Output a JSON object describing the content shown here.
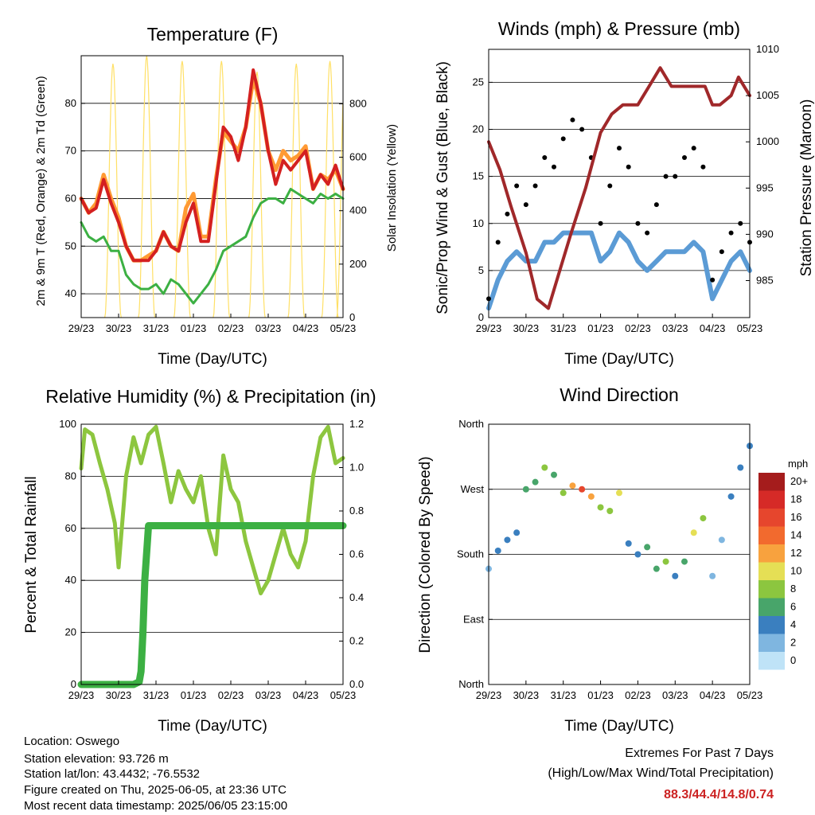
{
  "x_tick_labels": [
    "29/23",
    "30/23",
    "31/23",
    "01/23",
    "02/23",
    "03/23",
    "04/23",
    "05/23"
  ],
  "x_axis_label": "Time (Day/UTC)",
  "chart_data": [
    {
      "id": "temperature",
      "type": "line",
      "title": "Temperature (F)",
      "xlabel": "Time (Day/UTC)",
      "ylabel": "2m & 9m T (Red, Orange) & 2m Td (Green)",
      "ylabel_right": "Solar Insolation (Yellow)",
      "ylim": [
        35,
        90
      ],
      "yticks": [
        40,
        50,
        60,
        70,
        80
      ],
      "ylim_right": [
        0,
        980
      ],
      "yticks_right": [
        0,
        200,
        400,
        600,
        800
      ],
      "x_days": [
        0,
        7
      ],
      "grid": true,
      "series": [
        {
          "color": "#ff9a33",
          "x": [
            0,
            0.2,
            0.4,
            0.6,
            0.8,
            1.0,
            1.2,
            1.4,
            1.6,
            1.8,
            2.0,
            2.2,
            2.4,
            2.6,
            2.8,
            3.0,
            3.2,
            3.4,
            3.6,
            3.8,
            4.0,
            4.2,
            4.4,
            4.6,
            4.8,
            5.0,
            5.2,
            5.4,
            5.6,
            5.8,
            6.0,
            6.2,
            6.4,
            6.6,
            6.8,
            7.0
          ],
          "y": [
            60,
            57,
            59,
            65,
            60,
            56,
            50,
            47,
            47,
            48,
            49,
            53,
            50,
            49,
            58,
            61,
            52,
            52,
            64,
            74,
            72,
            70,
            75,
            85,
            80,
            70,
            66,
            70,
            68,
            69,
            71,
            62,
            65,
            64,
            66,
            62
          ]
        },
        {
          "color": "#d42020",
          "x": [
            0,
            0.2,
            0.4,
            0.6,
            0.8,
            1.0,
            1.2,
            1.4,
            1.6,
            1.8,
            2.0,
            2.2,
            2.4,
            2.6,
            2.8,
            3.0,
            3.2,
            3.4,
            3.6,
            3.8,
            4.0,
            4.2,
            4.4,
            4.6,
            4.8,
            5.0,
            5.2,
            5.4,
            5.6,
            5.8,
            6.0,
            6.2,
            6.4,
            6.6,
            6.8,
            7.0
          ],
          "y": [
            60,
            57,
            58,
            64,
            59,
            55,
            50,
            47,
            47,
            47,
            49,
            53,
            50,
            49,
            55,
            59,
            51,
            51,
            63,
            75,
            73,
            68,
            75,
            87,
            80,
            70,
            63,
            68,
            66,
            68,
            70,
            62,
            65,
            63,
            67,
            62
          ]
        },
        {
          "color": "#3cb043",
          "x": [
            0,
            0.2,
            0.4,
            0.6,
            0.8,
            1.0,
            1.2,
            1.4,
            1.6,
            1.8,
            2.0,
            2.2,
            2.4,
            2.6,
            2.8,
            3.0,
            3.2,
            3.4,
            3.6,
            3.8,
            4.0,
            4.2,
            4.4,
            4.6,
            4.8,
            5.0,
            5.2,
            5.4,
            5.6,
            5.8,
            6.0,
            6.2,
            6.4,
            6.6,
            6.8,
            7.0
          ],
          "y": [
            55,
            52,
            51,
            52,
            49,
            49,
            44,
            42,
            41,
            41,
            42,
            40,
            43,
            42,
            40,
            38,
            40,
            42,
            45,
            49,
            50,
            51,
            52,
            56,
            59,
            60,
            60,
            59,
            62,
            61,
            60,
            59,
            61,
            60,
            61,
            60
          ]
        },
        {
          "color": "#ffe066",
          "type": "solar",
          "peak_days": [
            0.85,
            1.75,
            2.7,
            3.75,
            4.7,
            5.75,
            6.65,
            7.05
          ],
          "peak_values": [
            950,
            980,
            960,
            960,
            920,
            950,
            960,
            940
          ]
        }
      ]
    },
    {
      "id": "winds",
      "type": "scatter",
      "title": "Winds (mph) & Pressure (mb)",
      "xlabel": "Time (Day/UTC)",
      "ylabel": "Sonic/Prop Wind & Gust (Blue, Black)",
      "ylabel_right": "Station Pressure (Maroon)",
      "ylim": [
        0,
        28.5
      ],
      "yticks": [
        0,
        5,
        10,
        15,
        20,
        25
      ],
      "ylim_right": [
        981,
        1010
      ],
      "yticks_right": [
        985,
        990,
        995,
        1000,
        1005,
        1010
      ],
      "x_days": [
        0,
        7
      ],
      "grid": true,
      "wind_x": [
        0,
        0.25,
        0.5,
        0.75,
        1.0,
        1.25,
        1.5,
        1.75,
        2.0,
        2.25,
        2.5,
        2.75,
        3.0,
        3.25,
        3.5,
        3.75,
        4.0,
        4.25,
        4.5,
        4.75,
        5.0,
        5.25,
        5.5,
        5.75,
        6.0,
        6.25,
        6.5,
        6.75,
        7.0
      ],
      "wind_blue": [
        1,
        4,
        6,
        7,
        6,
        6,
        8,
        8,
        9,
        9,
        9,
        9,
        6,
        7,
        9,
        8,
        6,
        5,
        6,
        7,
        7,
        7,
        8,
        7,
        2,
        4,
        6,
        7,
        5
      ],
      "gust_black": [
        2,
        8,
        11,
        14,
        12,
        14,
        17,
        16,
        19,
        21,
        20,
        17,
        10,
        14,
        18,
        16,
        10,
        9,
        12,
        15,
        15,
        17,
        18,
        16,
        4,
        7,
        9,
        10,
        8
      ],
      "pressure_x": [
        0,
        0.3,
        0.6,
        1.0,
        1.3,
        1.6,
        1.9,
        2.2,
        2.6,
        3.0,
        3.3,
        3.6,
        4.0,
        4.3,
        4.6,
        4.9,
        5.2,
        5.5,
        5.8,
        6.0,
        6.2,
        6.5,
        6.7,
        7.0
      ],
      "pressure": [
        1000,
        997,
        993,
        988,
        983,
        982,
        986,
        990,
        995,
        1001,
        1003,
        1004,
        1004,
        1006,
        1008,
        1006,
        1006,
        1006,
        1006,
        1004,
        1004,
        1005,
        1007,
        1005
      ]
    },
    {
      "id": "humidity",
      "type": "line",
      "title": "Relative Humidity (%) & Precipitation (in)",
      "xlabel": "Time (Day/UTC)",
      "ylabel": "Percent & Total Rainfall",
      "ylim": [
        0,
        100
      ],
      "yticks": [
        0,
        20,
        40,
        60,
        80,
        100
      ],
      "ylim_right": [
        0,
        1.2
      ],
      "yticks_right": [
        "0.0",
        "0.2",
        "0.4",
        "0.6",
        "0.8",
        "1.0",
        "1.2"
      ],
      "x_days": [
        0,
        7
      ],
      "grid": true,
      "series": [
        {
          "color": "#8dc63f",
          "x": [
            0,
            0.1,
            0.3,
            0.5,
            0.7,
            0.9,
            1.0,
            1.2,
            1.4,
            1.6,
            1.8,
            2.0,
            2.2,
            2.4,
            2.6,
            2.8,
            3.0,
            3.2,
            3.4,
            3.6,
            3.8,
            4.0,
            4.2,
            4.4,
            4.6,
            4.8,
            5.0,
            5.2,
            5.4,
            5.6,
            5.8,
            6.0,
            6.2,
            6.4,
            6.6,
            6.8,
            7.0
          ],
          "y": [
            83,
            98,
            96,
            85,
            75,
            62,
            45,
            80,
            95,
            85,
            96,
            99,
            85,
            70,
            82,
            75,
            70,
            80,
            60,
            50,
            88,
            75,
            70,
            55,
            45,
            35,
            40,
            50,
            60,
            50,
            45,
            55,
            80,
            95,
            99,
            85,
            87
          ]
        },
        {
          "color": "#3cb043",
          "x": [
            0,
            0.5,
            1.0,
            1.4,
            1.55,
            1.6,
            1.65,
            1.7,
            1.8,
            2.0,
            3.0,
            4.0,
            5.0,
            6.0,
            7.0
          ],
          "y": [
            0,
            0,
            0,
            0,
            1,
            5,
            20,
            40,
            61,
            61,
            61,
            61,
            61,
            61,
            61
          ]
        }
      ]
    },
    {
      "id": "wind_direction",
      "type": "scatter",
      "title": "Wind Direction",
      "xlabel": "Time (Day/UTC)",
      "ylabel": "Direction (Colored By Speed)",
      "ytick_labels": [
        "North",
        "East",
        "South",
        "West",
        "North"
      ],
      "ylim": [
        0,
        360
      ],
      "x_days": [
        0,
        7
      ],
      "grid": true,
      "direction_x": [
        0,
        0.25,
        0.5,
        0.75,
        1.0,
        1.25,
        1.5,
        1.75,
        2.0,
        2.25,
        2.5,
        2.75,
        3.0,
        3.25,
        3.5,
        3.75,
        4.0,
        4.25,
        4.5,
        4.75,
        5.0,
        5.25,
        5.5,
        5.75,
        6.0,
        6.25,
        6.5,
        6.75,
        7.0
      ],
      "direction": [
        160,
        185,
        200,
        210,
        270,
        280,
        300,
        290,
        265,
        275,
        270,
        260,
        245,
        240,
        265,
        195,
        180,
        190,
        160,
        170,
        150,
        170,
        210,
        230,
        150,
        200,
        260,
        300,
        330
      ],
      "speed_class": [
        2,
        3,
        3,
        4,
        6,
        6,
        8,
        6,
        8,
        12,
        16,
        12,
        8,
        8,
        10,
        4,
        4,
        6,
        6,
        8,
        4,
        6,
        10,
        8,
        2,
        2,
        4,
        4,
        4
      ],
      "colorbar": {
        "unit": "mph",
        "labels": [
          "20+",
          "18",
          "16",
          "14",
          "12",
          "10",
          "8",
          "6",
          "4",
          "2",
          "0"
        ],
        "colors": [
          "#a51c1c",
          "#d62a27",
          "#e6462d",
          "#f26a2e",
          "#f8a23e",
          "#e5df55",
          "#8cc63f",
          "#48a56a",
          "#3a7fbf",
          "#7fb6e0",
          "#bfe3f7"
        ]
      }
    }
  ],
  "station_info": {
    "location": "Location: Oswego",
    "elevation": "Station elevation: 93.726 m",
    "latlon": "Station lat/lon: 43.4432; -76.5532",
    "created": "Figure created on Thu, 2025-06-05, at 23:36 UTC",
    "recent": "Most recent data timestamp: 2025/06/05 23:15:00"
  },
  "extremes": {
    "heading": "Extremes For Past 7 Days",
    "subheading": "(High/Low/Max Wind/Total Precipitation)",
    "values": "88.3/44.4/14.8/0.74"
  }
}
